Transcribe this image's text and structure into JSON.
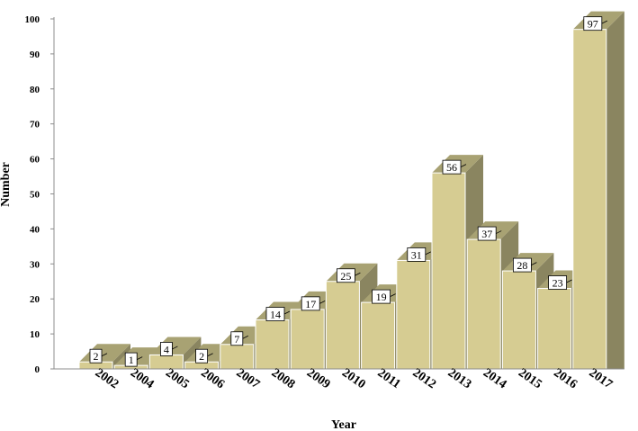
{
  "chart_data": {
    "type": "bar",
    "categories": [
      "2002",
      "2004",
      "2005",
      "2006",
      "2007",
      "2008",
      "2009",
      "2010",
      "2011",
      "2012",
      "2013",
      "2014",
      "2015",
      "2016",
      "2017"
    ],
    "values": [
      2,
      1,
      4,
      2,
      7,
      14,
      17,
      25,
      19,
      31,
      56,
      37,
      28,
      23,
      97
    ],
    "title": "",
    "xlabel": "Year",
    "ylabel": "Number",
    "ylim": [
      0,
      100
    ],
    "yticks": [
      0,
      10,
      20,
      30,
      40,
      50,
      60,
      70,
      80,
      90,
      100
    ],
    "grid": false,
    "style": "3d",
    "colors": {
      "bar_front": "#d6cc92",
      "bar_top": "#a8a273",
      "bar_side": "#8a8560",
      "bar_edge": "#ffffff",
      "axis": "#8c8c8c",
      "label_box": "#ffffff"
    }
  }
}
